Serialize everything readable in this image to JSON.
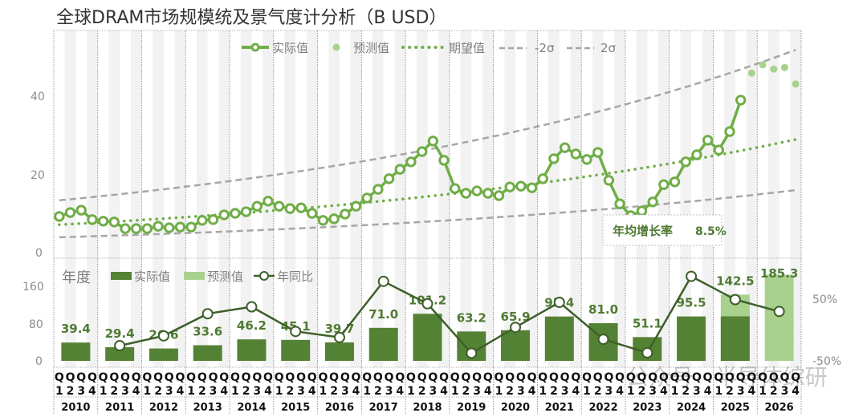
{
  "chart_data": [
    {
      "type": "line",
      "title": "全球DRAM市场规模统及景气度计分析（B USD）",
      "quarters": [
        "Q1",
        "Q2",
        "Q3",
        "Q4"
      ],
      "years": [
        "2010",
        "2011",
        "2012",
        "2013",
        "2014",
        "2015",
        "2016",
        "2017",
        "2018",
        "2019",
        "2020",
        "2021",
        "2022",
        "2023",
        "2024",
        "2025",
        "2026"
      ],
      "ylim": [
        0,
        55
      ],
      "yticks": [
        0,
        20,
        40
      ],
      "grid": false,
      "legend_position": "top-right",
      "legend": {
        "actual": "实际值",
        "forecast": "预测值",
        "expected": "期望值",
        "minus2sigma": "-2σ",
        "plus2sigma": "2σ"
      },
      "series": [
        {
          "name": "实际值",
          "start": "2010Q1",
          "values": [
            9.2,
            10.2,
            10.8,
            8.4,
            8.0,
            7.8,
            6.1,
            6.1,
            6.1,
            6.7,
            6.3,
            6.5,
            6.5,
            8.2,
            8.4,
            9.6,
            10.0,
            10.4,
            11.8,
            13.1,
            11.8,
            11.2,
            11.4,
            10.0,
            8.2,
            8.6,
            9.8,
            11.8,
            13.9,
            16.1,
            18.8,
            21.2,
            23.1,
            25.7,
            28.4,
            23.5,
            16.3,
            15.1,
            15.7,
            15.1,
            14.5,
            16.7,
            16.9,
            16.5,
            18.8,
            23.9,
            26.7,
            25.1,
            23.7,
            25.5,
            18.4,
            12.4,
            9.4,
            10.6,
            12.9,
            17.3,
            18.0,
            23.1,
            24.9,
            28.6,
            26.1,
            30.8,
            38.8
          ]
        },
        {
          "name": "预测值",
          "start": "2025Q4",
          "values": [
            45.7,
            47.8,
            46.7,
            47.1,
            42.9
          ]
        },
        {
          "name": "期望值",
          "from": 7.1,
          "to": 28.8
        },
        {
          "name": "-2σ",
          "from": 3.9,
          "to": 15.9
        },
        {
          "name": "2σ",
          "from": 13.3,
          "to": 51.6
        }
      ],
      "annotation": {
        "label": "年均增长率",
        "value": "8.5%"
      }
    },
    {
      "type": "bar",
      "categories": [
        "2010",
        "2011",
        "2012",
        "2013",
        "2014",
        "2015",
        "2016",
        "2017",
        "2018",
        "2019",
        "2020",
        "2021",
        "2022",
        "2023",
        "2024",
        "2025",
        "2026"
      ],
      "ylim": [
        0,
        190
      ],
      "yticks": [
        0,
        80,
        160
      ],
      "y2ticks": [
        "50%",
        "-50%"
      ],
      "y2lim": [
        -50,
        50
      ],
      "legend": {
        "title": "年度",
        "actual": "实际值",
        "forecast": "预测值",
        "yoy": "年同比"
      },
      "series": [
        {
          "name": "实际值",
          "values": [
            39.4,
            29.4,
            26.6,
            33.6,
            46.2,
            45.1,
            39.7,
            71.0,
            101.2,
            63.2,
            65.9,
            95.4,
            81.0,
            51.1,
            95.5,
            95.7,
            0
          ]
        },
        {
          "name": "预测值",
          "values": [
            0,
            0,
            0,
            0,
            0,
            0,
            0,
            0,
            0,
            0,
            0,
            0,
            0,
            0,
            0,
            142.5,
            185.3
          ]
        },
        {
          "name": "年同比",
          "values": [
            null,
            -25.4,
            -9.5,
            26.3,
            37.5,
            -2.4,
            -12.0,
            78.8,
            42.5,
            -37.5,
            4.3,
            44.8,
            -15.1,
            -36.9,
            86.9,
            49.2,
            30.0
          ]
        }
      ],
      "labels": [
        "39.4",
        "29.4",
        "26.6",
        "33.6",
        "46.2",
        "45.1",
        "39.7",
        "71.0",
        "101.2",
        "63.2",
        "65.9",
        "95.4",
        "81.0",
        "51.1",
        "95.5",
        "142.5",
        "185.3"
      ]
    }
  ],
  "watermark": "公众号 · 半导体综研",
  "colors": {
    "actual": "#70ad47",
    "forecast": "#a9d18e",
    "bar": "#548235",
    "yoy": "#3e5f2a",
    "band": "#a6a6a6",
    "stripe": "#f2f2f2",
    "label": "#4f7a32"
  }
}
